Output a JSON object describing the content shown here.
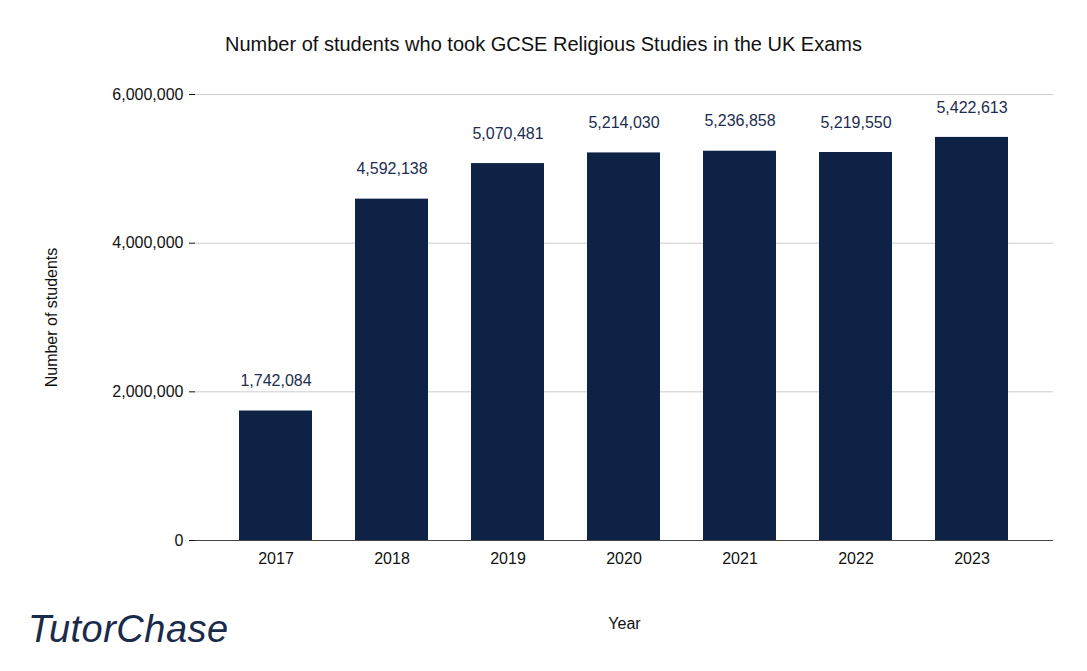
{
  "chart_data": {
    "type": "bar",
    "title": "Number of students who took GCSE Religious Studies in the UK Exams",
    "x_label": "Year",
    "y_label": "Number of students",
    "watermark": "TutorChase",
    "categories": [
      "2017",
      "2018",
      "2019",
      "2020",
      "2021",
      "2022",
      "2023"
    ],
    "values": [
      1742084,
      4592138,
      5070481,
      5214030,
      5236858,
      5219550,
      5422613
    ],
    "value_labels": [
      "1,742,084",
      "4,592,138",
      "5,070,481",
      "5,214,030",
      "5,236,858",
      "5,219,550",
      "5,422,613"
    ],
    "color": "#0d2244",
    "ylim": [
      0,
      6000000
    ],
    "yticks": [
      0,
      {
        "value": 2000000,
        "label": "2,000,000"
      },
      {
        "value": 4000000,
        "label": "4,000,000"
      },
      {
        "value": 6000000,
        "label": "6,000,000"
      }
    ],
    "grid": true,
    "data_labels": true
  }
}
